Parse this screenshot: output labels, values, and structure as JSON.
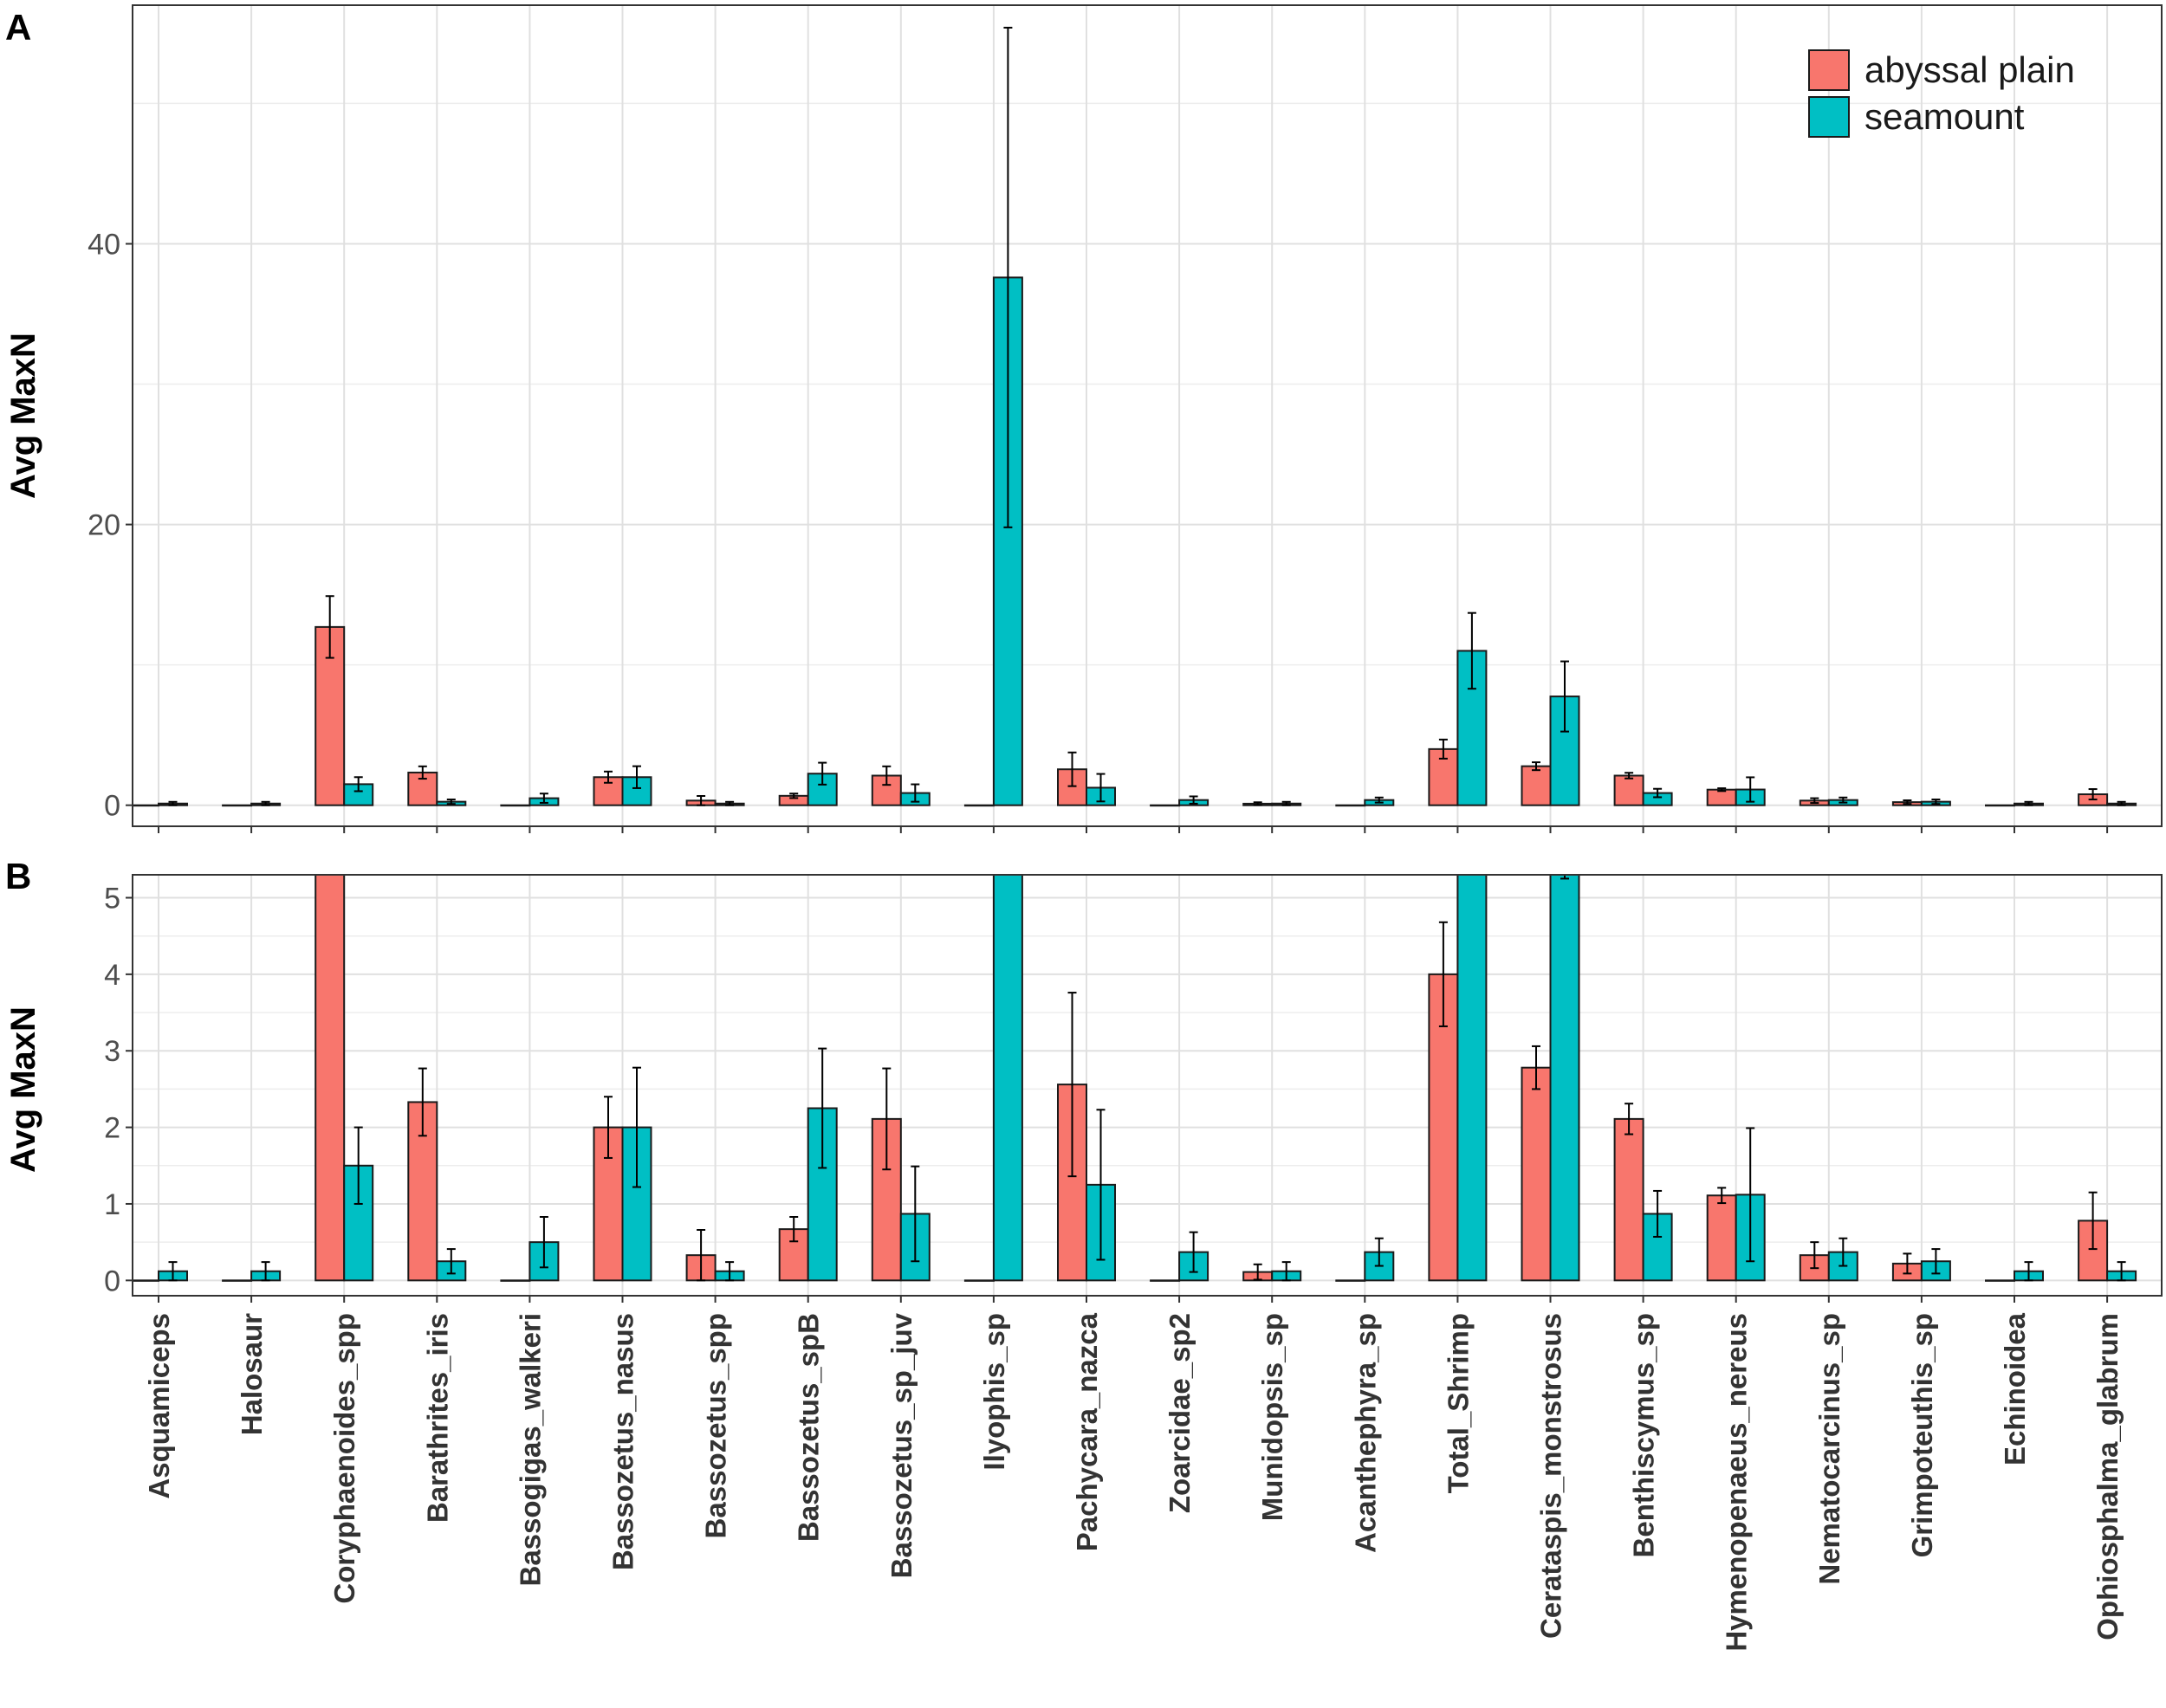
{
  "chart_data": [
    {
      "panel": "A",
      "type": "bar",
      "ylabel": "Avg MaxN",
      "ylim": [
        -1.5,
        57
      ],
      "yticks": [
        0,
        20,
        40
      ],
      "grid": true,
      "legend": "top-right",
      "categories": [
        "Asquamiceps",
        "Halosaur",
        "Coryphaenoides_spp",
        "Barathrites_iris",
        "Bassogigas_walkeri",
        "Bassozetus_nasus",
        "Bassozetus_spp",
        "Bassozetus_spB",
        "Bassozetus_sp_juv",
        "Ilyophis_sp",
        "Pachycara_nazca",
        "Zoarcidae_sp2",
        "Munidopsis_sp",
        "Acanthephyra_sp",
        "Total_Shrimp",
        "Cerataspis_monstrosus",
        "Benthiscymus_sp",
        "Hymenopenaeus_nereus",
        "Nematocarcinus_sp",
        "Grimpoteuthis_sp",
        "Echinoidea",
        "Ophiosphalma_glabrum"
      ],
      "series": [
        {
          "name": "abyssal plain",
          "color": "#F8766D",
          "values": [
            0,
            0,
            12.7,
            2.33,
            0,
            2.0,
            0.33,
            0.67,
            2.11,
            0,
            2.56,
            0,
            0.11,
            0,
            4.0,
            2.78,
            2.11,
            1.11,
            0.33,
            0.22,
            0,
            0.78
          ],
          "errors": [
            0,
            0,
            2.2,
            0.44,
            0,
            0.4,
            0.33,
            0.16,
            0.66,
            0,
            1.2,
            0,
            0.1,
            0,
            0.68,
            0.28,
            0.2,
            0.1,
            0.17,
            0.13,
            0,
            0.37
          ]
        },
        {
          "name": "seamount",
          "color": "#00BFC4",
          "values": [
            0.12,
            0.12,
            1.5,
            0.25,
            0.5,
            2.0,
            0.12,
            2.25,
            0.87,
            37.6,
            1.25,
            0.37,
            0.12,
            0.37,
            11.0,
            7.75,
            0.87,
            1.12,
            0.37,
            0.25,
            0.12,
            0.12
          ],
          "errors": [
            0.12,
            0.12,
            0.5,
            0.16,
            0.33,
            0.78,
            0.12,
            0.78,
            0.62,
            17.8,
            0.98,
            0.26,
            0.12,
            0.18,
            2.7,
            2.5,
            0.3,
            0.87,
            0.18,
            0.16,
            0.12,
            0.12
          ]
        }
      ]
    },
    {
      "panel": "B",
      "type": "bar",
      "ylabel": "Avg MaxN",
      "ylim": [
        -0.2,
        5.3
      ],
      "yticks": [
        0,
        1,
        2,
        3,
        4,
        5
      ],
      "grid": true,
      "note": "same data as panel A, y-axis zoomed to 0-5",
      "categories": "same as panel A"
    }
  ],
  "legend_title": ""
}
